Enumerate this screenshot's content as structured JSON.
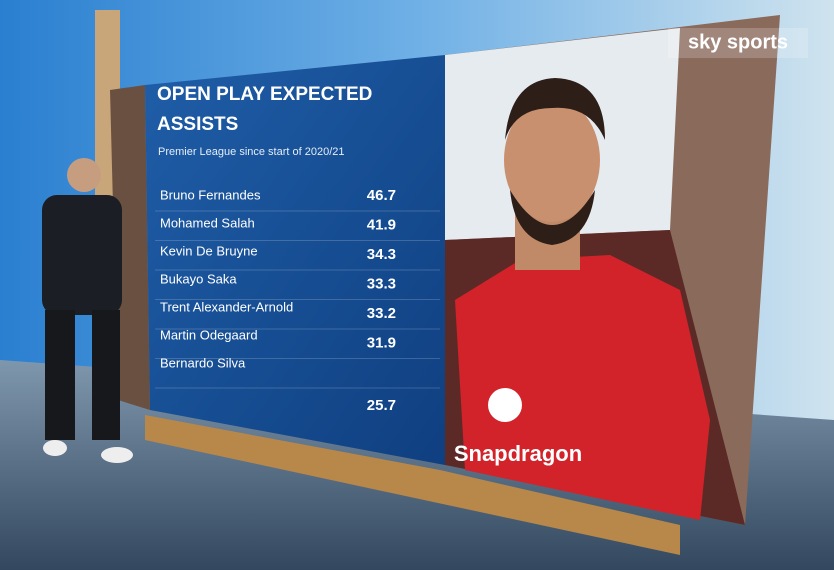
{
  "header": {
    "title": "OPEN PLAY EXPECTED ASSISTS",
    "subtitle": "Premier League since start of 2020/21",
    "logo": "sky sports"
  },
  "table": {
    "rows": [
      {
        "name": "Bruno Fernandes",
        "value": 46.7
      },
      {
        "name": "Mohamed Salah",
        "value": 41.9
      },
      {
        "name": "Kevin De Bruyne",
        "value": 34.3
      },
      {
        "name": "Bukayo Saka",
        "value": 33.3
      },
      {
        "name": "Trent Alexander-Arnold",
        "value": 33.2
      },
      {
        "name": "Martin Odegaard",
        "value": 31.9
      },
      {
        "name": "Bernardo Silva",
        "value": 25.7
      }
    ]
  },
  "photo": {
    "sponsor": "Snapdragon"
  }
}
